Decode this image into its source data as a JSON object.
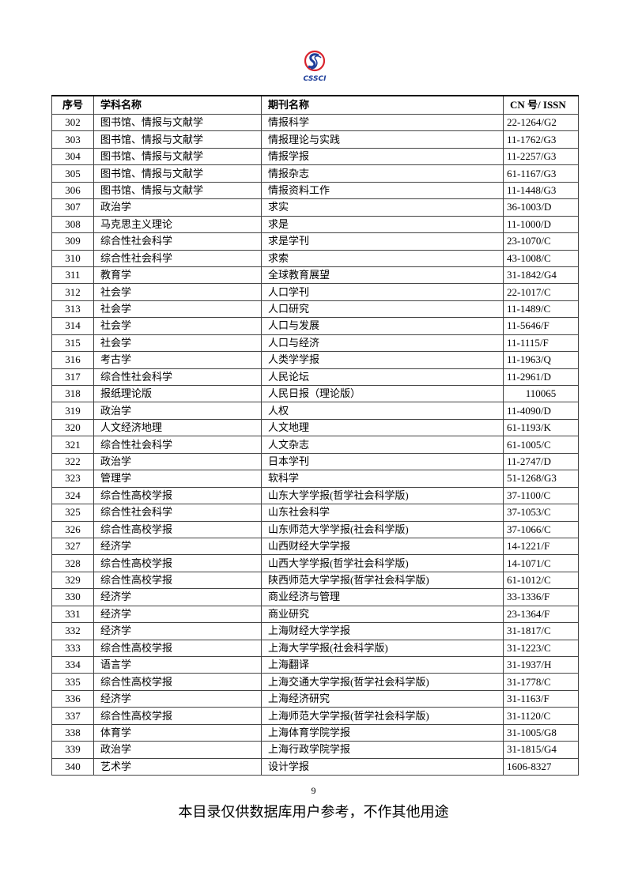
{
  "logo": {
    "text": "CSSCI",
    "brand_red": "#d9232d",
    "brand_blue": "#1f3f9a"
  },
  "table": {
    "headers": [
      "序号",
      "学科名称",
      "期刊名称",
      "CN 号/ ISSN"
    ],
    "rows": [
      [
        "302",
        "图书馆、情报与文献学",
        "情报科学",
        "22-1264/G2"
      ],
      [
        "303",
        "图书馆、情报与文献学",
        "情报理论与实践",
        "11-1762/G3"
      ],
      [
        "304",
        "图书馆、情报与文献学",
        "情报学报",
        "11-2257/G3"
      ],
      [
        "305",
        "图书馆、情报与文献学",
        "情报杂志",
        "61-1167/G3"
      ],
      [
        "306",
        "图书馆、情报与文献学",
        "情报资料工作",
        "11-1448/G3"
      ],
      [
        "307",
        "政治学",
        "求实",
        "36-1003/D"
      ],
      [
        "308",
        "马克思主义理论",
        "求是",
        "11-1000/D"
      ],
      [
        "309",
        "综合性社会科学",
        "求是学刊",
        "23-1070/C"
      ],
      [
        "310",
        "综合性社会科学",
        "求索",
        "43-1008/C"
      ],
      [
        "311",
        "教育学",
        "全球教育展望",
        "31-1842/G4"
      ],
      [
        "312",
        "社会学",
        "人口学刊",
        "22-1017/C"
      ],
      [
        "313",
        "社会学",
        "人口研究",
        "11-1489/C"
      ],
      [
        "314",
        "社会学",
        "人口与发展",
        "11-5646/F"
      ],
      [
        "315",
        "社会学",
        "人口与经济",
        "11-1115/F"
      ],
      [
        "316",
        "考古学",
        "人类学学报",
        "11-1963/Q"
      ],
      [
        "317",
        "综合性社会科学",
        "人民论坛",
        "11-2961/D"
      ],
      [
        "318",
        "报纸理论版",
        "人民日报（理论版）",
        "110065"
      ],
      [
        "319",
        "政治学",
        "人权",
        "11-4090/D"
      ],
      [
        "320",
        "人文经济地理",
        "人文地理",
        "61-1193/K"
      ],
      [
        "321",
        "综合性社会科学",
        "人文杂志",
        "61-1005/C"
      ],
      [
        "322",
        "政治学",
        "日本学刊",
        "11-2747/D"
      ],
      [
        "323",
        "管理学",
        "软科学",
        "51-1268/G3"
      ],
      [
        "324",
        "综合性高校学报",
        "山东大学学报(哲学社会科学版)",
        "37-1100/C"
      ],
      [
        "325",
        "综合性社会科学",
        "山东社会科学",
        "37-1053/C"
      ],
      [
        "326",
        "综合性高校学报",
        "山东师范大学学报(社会科学版)",
        "37-1066/C"
      ],
      [
        "327",
        "经济学",
        "山西财经大学学报",
        "14-1221/F"
      ],
      [
        "328",
        "综合性高校学报",
        "山西大学学报(哲学社会科学版)",
        "14-1071/C"
      ],
      [
        "329",
        "综合性高校学报",
        "陕西师范大学学报(哲学社会科学版)",
        "61-1012/C"
      ],
      [
        "330",
        "经济学",
        "商业经济与管理",
        "33-1336/F"
      ],
      [
        "331",
        "经济学",
        "商业研究",
        "23-1364/F"
      ],
      [
        "332",
        "经济学",
        "上海财经大学学报",
        "31-1817/C"
      ],
      [
        "333",
        "综合性高校学报",
        "上海大学学报(社会科学版)",
        "31-1223/C"
      ],
      [
        "334",
        "语言学",
        "上海翻译",
        "31-1937/H"
      ],
      [
        "335",
        "综合性高校学报",
        "上海交通大学学报(哲学社会科学版)",
        "31-1778/C"
      ],
      [
        "336",
        "经济学",
        "上海经济研究",
        "31-1163/F"
      ],
      [
        "337",
        "综合性高校学报",
        "上海师范大学学报(哲学社会科学版)",
        "31-1120/C"
      ],
      [
        "338",
        "体育学",
        "上海体育学院学报",
        "31-1005/G8"
      ],
      [
        "339",
        "政治学",
        "上海行政学院学报",
        "31-1815/G4"
      ],
      [
        "340",
        "艺术学",
        "设计学报",
        "1606-8327"
      ]
    ]
  },
  "page_number": "9",
  "footer": "本目录仅供数据库用户参考，不作其他用途"
}
